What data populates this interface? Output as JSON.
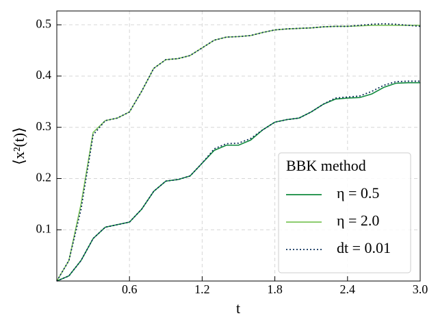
{
  "chart_data": {
    "type": "line",
    "xlabel": "t",
    "ylabel": "⟨x²(t)⟩",
    "legend_title": "BBK method",
    "legend": "lower right",
    "grid": true,
    "xlim": [
      0,
      3.0
    ],
    "xticks": [
      0.6,
      1.2,
      1.8,
      2.4,
      {
        "value": 3.0,
        "label": "3.0"
      }
    ],
    "ylim": [
      0,
      0.527
    ],
    "yticks": [
      0.1,
      0.2,
      0.3,
      0.4,
      0.5
    ],
    "x": [
      0,
      0.1,
      0.2,
      0.3,
      0.4,
      0.5,
      0.6,
      0.7,
      0.8,
      0.9,
      1.0,
      1.1,
      1.2,
      1.3,
      1.4,
      1.5,
      1.6,
      1.7,
      1.8,
      1.9,
      2.0,
      2.1,
      2.2,
      2.3,
      2.4,
      2.5,
      2.6,
      2.7,
      2.8,
      2.9,
      3.0
    ],
    "series": [
      {
        "name": "η = 0.5",
        "color": "#0f8a3c",
        "style": "solid",
        "values": [
          0,
          0.01,
          0.04,
          0.083,
          0.105,
          0.11,
          0.115,
          0.14,
          0.175,
          0.195,
          0.198,
          0.205,
          0.23,
          0.255,
          0.265,
          0.265,
          0.275,
          0.295,
          0.31,
          0.315,
          0.318,
          0.33,
          0.345,
          0.355,
          0.357,
          0.358,
          0.365,
          0.378,
          0.386,
          0.387,
          0.387
        ]
      },
      {
        "name": "η = 2.0",
        "color": "#7cc45a",
        "style": "solid",
        "values": [
          0,
          0.04,
          0.15,
          0.29,
          0.313,
          0.318,
          0.33,
          0.37,
          0.415,
          0.432,
          0.434,
          0.44,
          0.455,
          0.47,
          0.476,
          0.477,
          0.479,
          0.485,
          0.49,
          0.492,
          0.493,
          0.494,
          0.496,
          0.497,
          0.497,
          0.498,
          0.499,
          0.499,
          0.499,
          0.499,
          0.499
        ]
      },
      {
        "name": "dt = 0.01",
        "color": "#0b2e59",
        "style": "dotted",
        "values": [
          0,
          0.01,
          0.04,
          0.083,
          0.105,
          0.11,
          0.115,
          0.14,
          0.175,
          0.195,
          0.198,
          0.205,
          0.23,
          0.258,
          0.268,
          0.269,
          0.278,
          0.295,
          0.31,
          0.315,
          0.318,
          0.33,
          0.345,
          0.357,
          0.359,
          0.361,
          0.37,
          0.382,
          0.389,
          0.39,
          0.39
        ]
      },
      {
        "name": "dt = 0.01",
        "color": "#0b2e59",
        "style": "dotted",
        "values": [
          0,
          0.04,
          0.14,
          0.285,
          0.313,
          0.318,
          0.33,
          0.37,
          0.415,
          0.432,
          0.434,
          0.44,
          0.455,
          0.47,
          0.476,
          0.477,
          0.479,
          0.485,
          0.49,
          0.492,
          0.493,
          0.494,
          0.496,
          0.497,
          0.497,
          0.499,
          0.501,
          0.502,
          0.501,
          0.499,
          0.497
        ]
      }
    ]
  }
}
